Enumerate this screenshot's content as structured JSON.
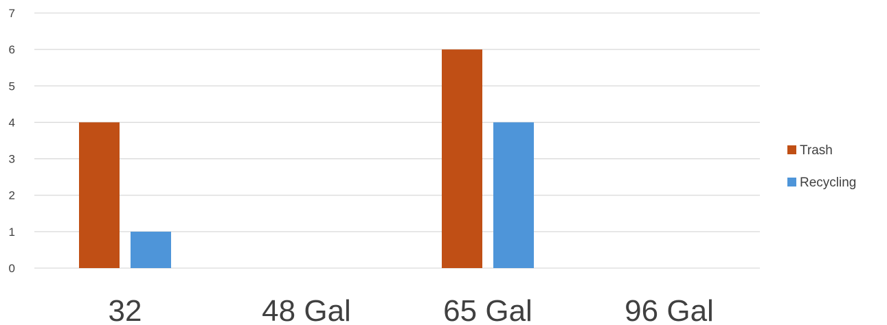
{
  "chart_data": {
    "type": "bar",
    "categories": [
      "32",
      "48 Gal",
      "65 Gal",
      "96 Gal"
    ],
    "series": [
      {
        "name": "Trash",
        "values": [
          4,
          0,
          6,
          0
        ],
        "color": "#C04F15"
      },
      {
        "name": "Recycling",
        "values": [
          1,
          0,
          4,
          0
        ],
        "color": "#4E95D9"
      }
    ],
    "ylim": [
      0,
      7
    ],
    "yticks": [
      "0",
      "1",
      "2",
      "3",
      "4",
      "5",
      "6",
      "7"
    ],
    "grid": true,
    "legend_position": "right",
    "gridline_color": "#D9D9D9",
    "text_color": "#404040"
  }
}
